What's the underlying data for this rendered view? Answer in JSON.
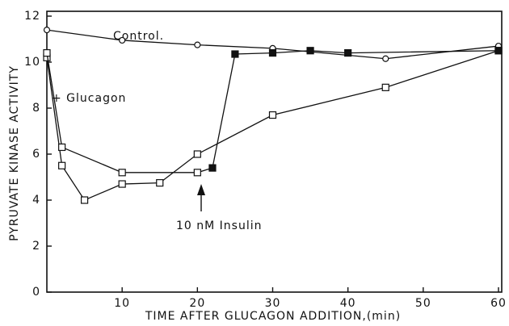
{
  "chart_data": {
    "type": "line",
    "xlabel": "TIME AFTER GLUCAGON ADDITION,(min)",
    "ylabel": "PYRUVATE KINASE ACTIVITY",
    "xlim": [
      0,
      60
    ],
    "ylim": [
      0,
      12
    ],
    "xticks": [
      10,
      20,
      30,
      40,
      50,
      60
    ],
    "yticks": [
      0,
      2,
      4,
      6,
      8,
      10,
      12
    ],
    "series": [
      {
        "name": "Control.",
        "color": "#111111",
        "marker": "circle",
        "x": [
          0,
          10,
          20,
          30,
          45,
          60
        ],
        "values": [
          11.4,
          10.95,
          10.75,
          10.6,
          10.15,
          10.7
        ]
      },
      {
        "name": "+ Glucagon",
        "color": "#111111",
        "marker": "square",
        "x": [
          0,
          2,
          5,
          10,
          15,
          20,
          30,
          45,
          60
        ],
        "values": [
          10.2,
          5.5,
          4.0,
          4.7,
          4.75,
          6.0,
          7.7,
          8.9,
          10.5
        ]
      },
      {
        "color": "#111111",
        "marker": "square",
        "x": [
          0,
          2,
          10,
          20,
          22,
          25,
          30,
          35,
          40,
          60
        ],
        "values": [
          10.4,
          6.3,
          5.2,
          5.2,
          5.4,
          10.35,
          10.4,
          10.5,
          10.4,
          10.5
        ],
        "filled": [
          false,
          false,
          false,
          false,
          true,
          true,
          true,
          true,
          true,
          true
        ]
      }
    ],
    "annotations": [
      "10 nM Insulin"
    ]
  }
}
